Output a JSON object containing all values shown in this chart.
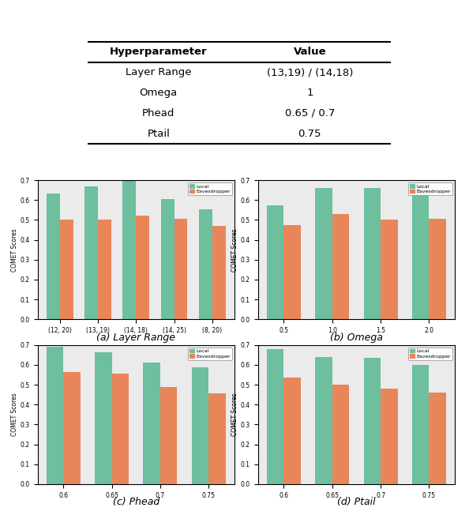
{
  "table": {
    "headers": [
      "Hyperparameter",
      "Value"
    ],
    "rows": [
      [
        "Layer Range",
        "(13,19) / (14,18)"
      ],
      [
        "Omega",
        "1"
      ],
      [
        "Phead",
        "0.65 / 0.7"
      ],
      [
        "Ptail",
        "0.75"
      ]
    ]
  },
  "local_color": "#6dbf9e",
  "eavesdropper_color": "#e8865a",
  "plots": {
    "layer_range": {
      "title": "(a) Layer Range",
      "ylabel": "COMET Scores",
      "categories": [
        "(12, 20)",
        "(13, 19)",
        "(14, 18)",
        "(14, 25)",
        "(8, 20)"
      ],
      "local": [
        0.635,
        0.67,
        0.725,
        0.605,
        0.555
      ],
      "eavesdropper": [
        0.5,
        0.5,
        0.52,
        0.505,
        0.47
      ],
      "ylim": [
        0.0,
        0.7
      ],
      "yticks": [
        0.0,
        0.1,
        0.2,
        0.3,
        0.4,
        0.5,
        0.6,
        0.7
      ]
    },
    "omega": {
      "title": "(b) Omega",
      "ylabel": "COMET Scores",
      "categories": [
        "0.5",
        "1.0",
        "1.5",
        "2.0"
      ],
      "local": [
        0.575,
        0.66,
        0.66,
        0.675
      ],
      "eavesdropper": [
        0.475,
        0.53,
        0.5,
        0.505
      ],
      "ylim": [
        0.0,
        0.7
      ],
      "yticks": [
        0.0,
        0.1,
        0.2,
        0.3,
        0.4,
        0.5,
        0.6,
        0.7
      ]
    },
    "phead": {
      "title": "(c) Phead",
      "ylabel": "COMET Scores",
      "categories": [
        "0.6",
        "0.65",
        "0.7",
        "0.75"
      ],
      "local": [
        0.69,
        0.665,
        0.61,
        0.59
      ],
      "eavesdropper": [
        0.565,
        0.555,
        0.49,
        0.455
      ],
      "ylim": [
        0.0,
        0.7
      ],
      "yticks": [
        0.0,
        0.1,
        0.2,
        0.3,
        0.4,
        0.5,
        0.6,
        0.7
      ]
    },
    "ptail": {
      "title": "(d) Ptail",
      "ylabel": "COMET Scores",
      "categories": [
        "0.6",
        "0.65",
        "0.7",
        "0.75"
      ],
      "local": [
        0.68,
        0.64,
        0.635,
        0.6
      ],
      "eavesdropper": [
        0.535,
        0.5,
        0.48,
        0.46
      ],
      "ylim": [
        0.0,
        0.7
      ],
      "yticks": [
        0.0,
        0.1,
        0.2,
        0.3,
        0.4,
        0.5,
        0.6,
        0.7
      ]
    }
  },
  "legend_labels": [
    "Local",
    "Eavesdropper"
  ],
  "background_color": "#ebebeb"
}
